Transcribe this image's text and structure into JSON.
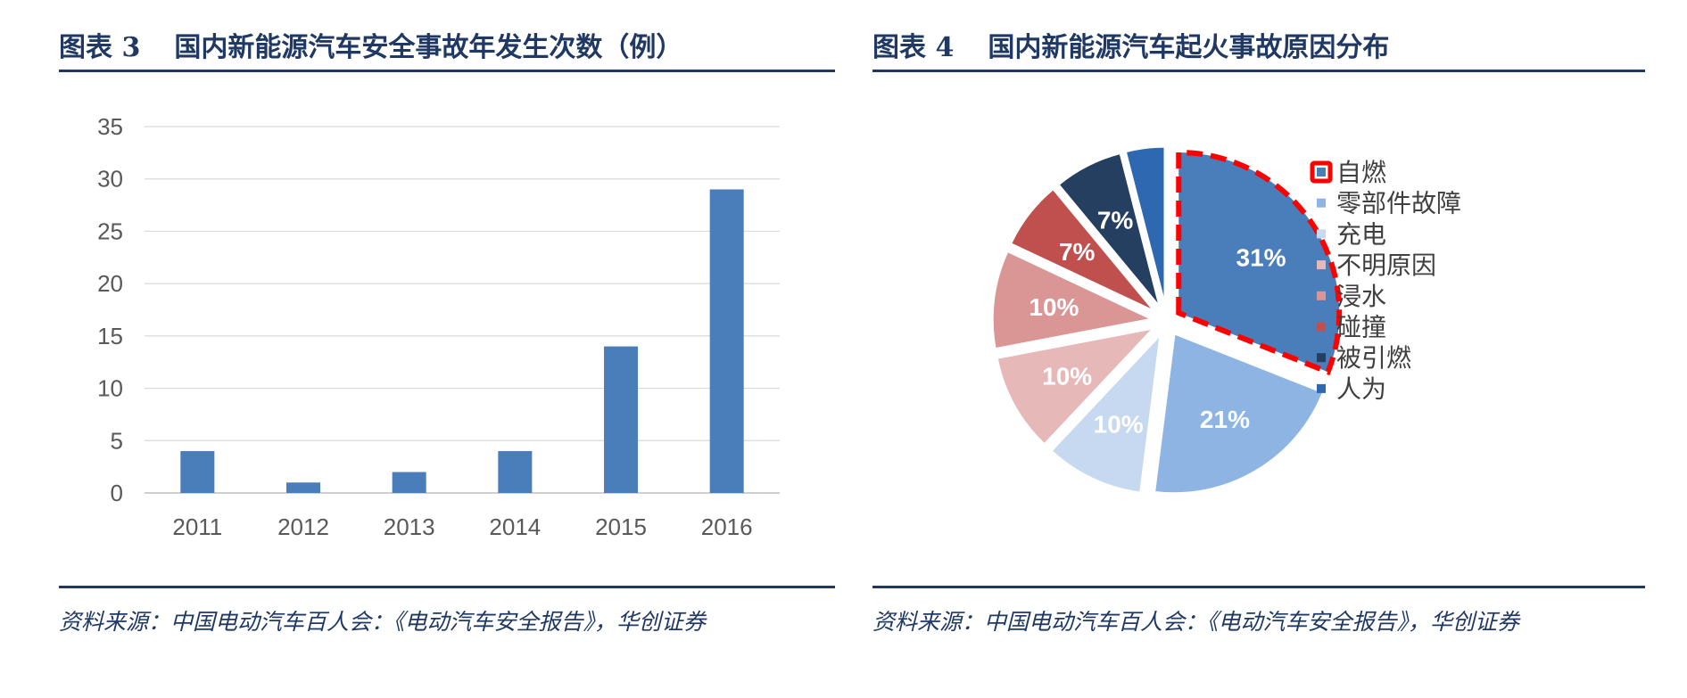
{
  "left": {
    "fig_no": "图表 3",
    "title": "国内新能源汽车安全事故年发生次数（例）",
    "source": "资料来源：中国电动汽车百人会：《电动汽车安全报告》，华创证券"
  },
  "right": {
    "fig_no": "图表 4",
    "title": "国内新能源汽车起火事故原因分布",
    "source": "资料来源：中国电动汽车百人会：《电动汽车安全报告》，华创证券"
  },
  "chart_data": [
    {
      "type": "bar",
      "title": "国内新能源汽车安全事故年发生次数（例）",
      "categories": [
        "2011",
        "2012",
        "2013",
        "2014",
        "2015",
        "2016"
      ],
      "values": [
        4,
        1,
        2,
        4,
        14,
        29
      ],
      "ylim": [
        0,
        35
      ],
      "yticks": [
        0,
        5,
        10,
        15,
        20,
        25,
        30,
        35
      ],
      "grid": true,
      "color": "#4a7ebb"
    },
    {
      "type": "pie",
      "title": "国内新能源汽车起火事故原因分布",
      "legend_position": "right",
      "highlight": "自燃",
      "highlight_color": "#ff0000",
      "slices": [
        {
          "label": "自燃",
          "value": 31,
          "text": "31%",
          "color": "#4a7ebb"
        },
        {
          "label": "零部件故障",
          "value": 21,
          "text": "21%",
          "color": "#8eb4e3"
        },
        {
          "label": "充电",
          "value": 10,
          "text": "10%",
          "color": "#c6d9f1"
        },
        {
          "label": "不明原因",
          "value": 10,
          "text": "10%",
          "color": "#e6b9b8"
        },
        {
          "label": "浸水",
          "value": 10,
          "text": "10%",
          "color": "#da9694"
        },
        {
          "label": "碰撞",
          "value": 7,
          "text": "7%",
          "color": "#c0504d"
        },
        {
          "label": "被引燃",
          "value": 7,
          "text": "7%",
          "color": "#243f60"
        },
        {
          "label": "人为",
          "value": 4,
          "text": "",
          "color": "#2e68b0"
        }
      ]
    }
  ]
}
